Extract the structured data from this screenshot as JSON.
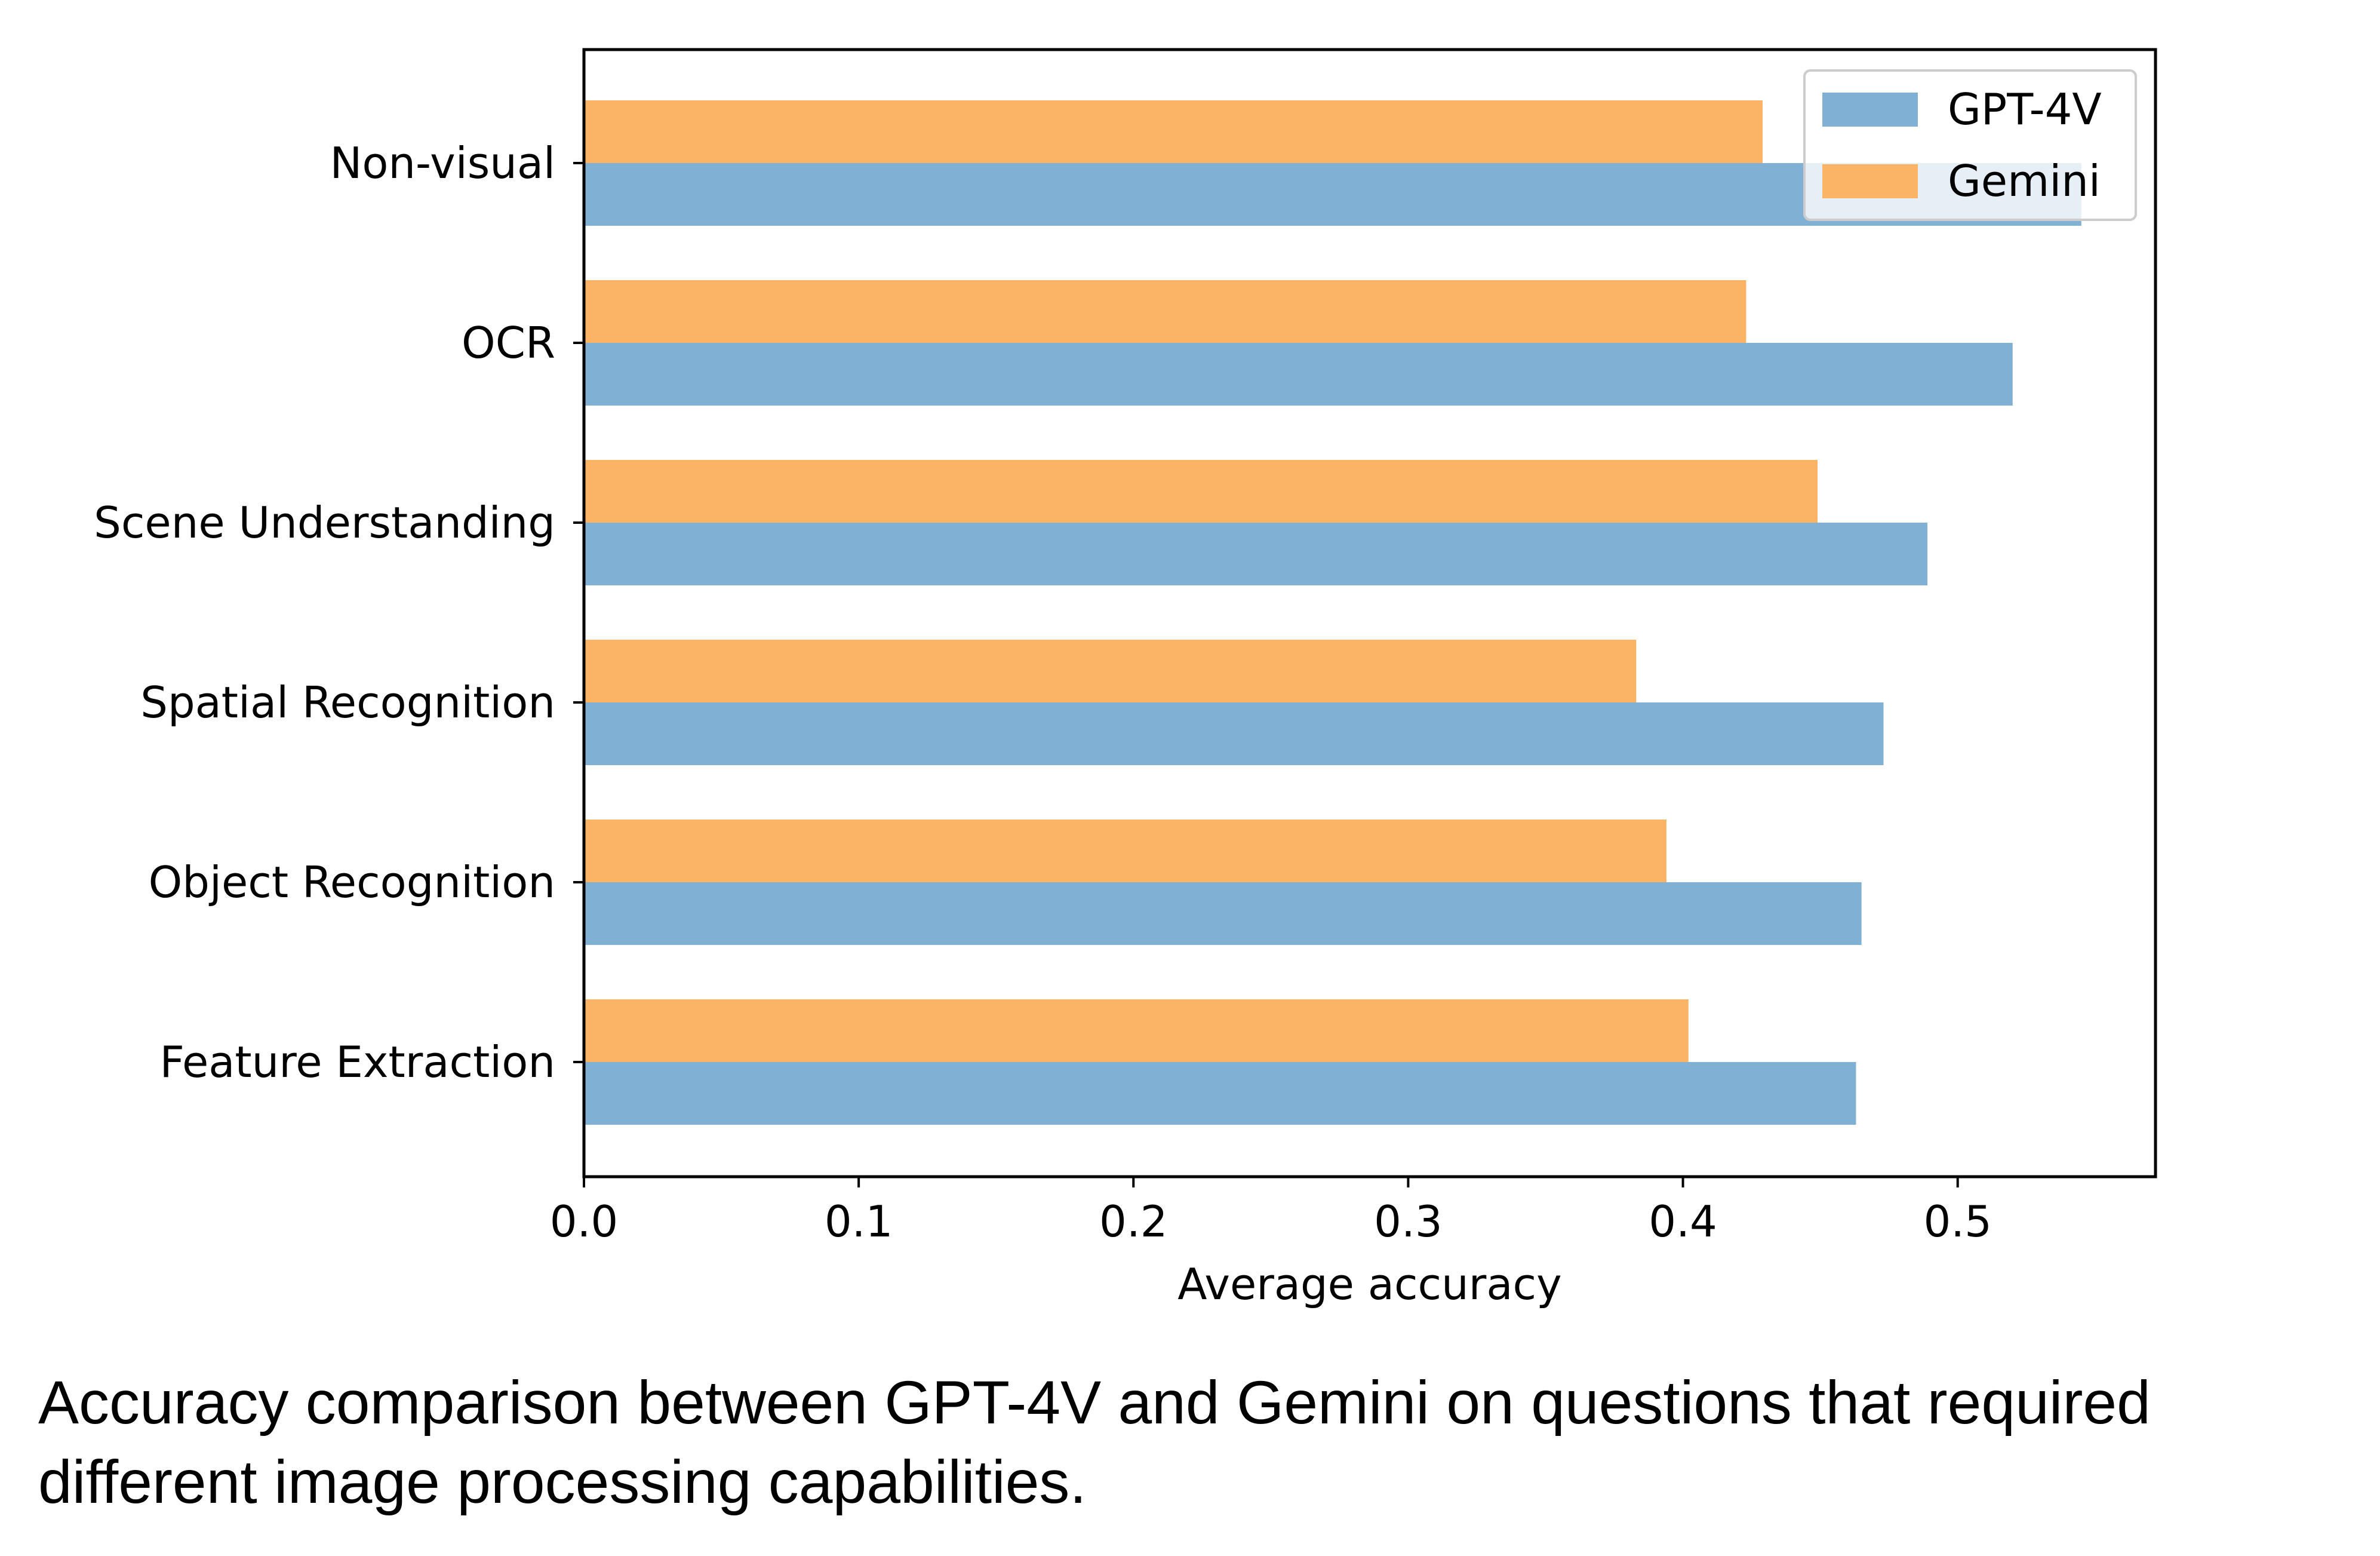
{
  "chart_data": {
    "type": "bar",
    "orientation": "horizontal",
    "categories": [
      "Non-visual",
      "OCR",
      "Scene Understanding",
      "Spatial Recognition",
      "Object Recognition",
      "Feature Extraction"
    ],
    "series": [
      {
        "name": "GPT-4V",
        "values": [
          0.545,
          0.52,
          0.489,
          0.473,
          0.465,
          0.463
        ],
        "color": "#80b0d3"
      },
      {
        "name": "Gemini",
        "values": [
          0.429,
          0.423,
          0.449,
          0.383,
          0.394,
          0.402
        ],
        "color": "#fbb365"
      }
    ],
    "xlabel": "Average accuracy",
    "ylabel": "",
    "xlim": [
      0.0,
      0.572
    ],
    "xticks": [
      "0.0",
      "0.1",
      "0.2",
      "0.3",
      "0.4",
      "0.5"
    ],
    "grid": false,
    "legend_position": "top-right"
  },
  "caption": "Accuracy comparison between GPT-4V and Gemini on questions that required different image processing capabilities."
}
